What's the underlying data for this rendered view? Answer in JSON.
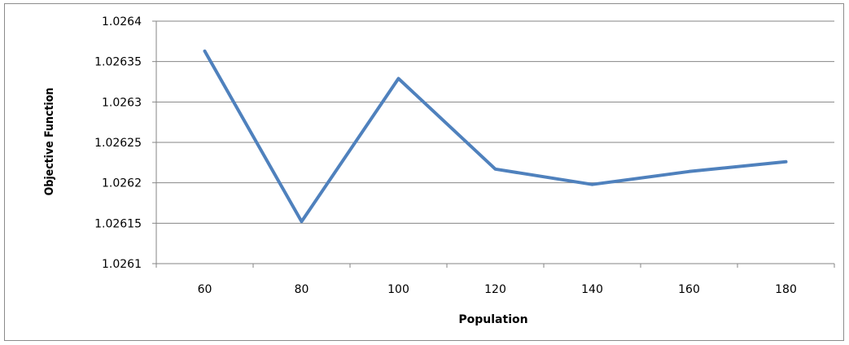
{
  "chart_data": {
    "type": "line",
    "title": "",
    "xlabel": "Population",
    "ylabel": "Objective Function",
    "categories": [
      "60",
      "80",
      "100",
      "120",
      "140",
      "160",
      "180"
    ],
    "y_ticks": [
      "1.0261",
      "1.02615",
      "1.0262",
      "1.02625",
      "1.0263",
      "1.02635",
      "1.0264"
    ],
    "ylim": [
      1.0261,
      1.0264
    ],
    "grid": "horizontal",
    "legend": "none",
    "series": [
      {
        "color": "#4f81bd",
        "values": [
          1.026363,
          1.026152,
          1.026329,
          1.026217,
          1.026198,
          1.026214,
          1.026226
        ]
      }
    ]
  }
}
